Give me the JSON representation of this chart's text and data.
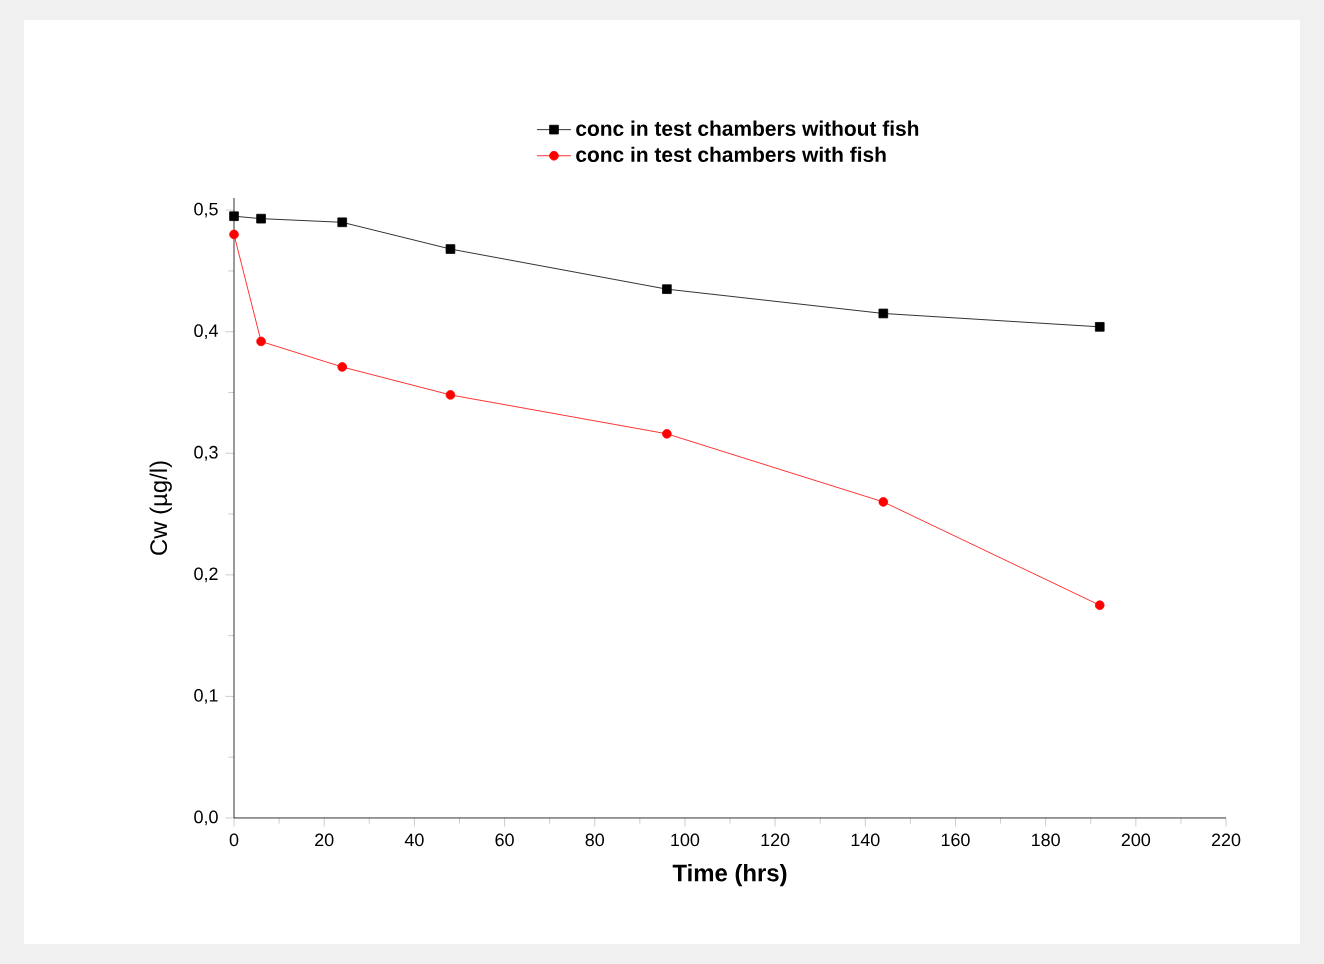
{
  "chart_data": {
    "type": "line",
    "xlabel": "Time (hrs)",
    "ylabel": "Cw (µg/l)",
    "legend": "top",
    "grid": false,
    "xlim": [
      0,
      220
    ],
    "xticks": [
      0,
      20,
      40,
      60,
      80,
      100,
      120,
      140,
      160,
      180,
      200,
      220
    ],
    "ylim": [
      0,
      0.51
    ],
    "yticks": [
      {
        "value": 0,
        "label": "0,0"
      },
      {
        "value": 0.1,
        "label": "0,1"
      },
      {
        "value": 0.2,
        "label": "0,2"
      },
      {
        "value": 0.3,
        "label": "0,3"
      },
      {
        "value": 0.4,
        "label": "0,4"
      },
      {
        "value": 0.5,
        "label": "0,5"
      }
    ],
    "x": [
      0,
      6,
      24,
      48,
      96,
      144,
      192
    ],
    "series": [
      {
        "name": "conc in test chambers without fish",
        "color": "#000000",
        "marker": "square",
        "values": [
          0.495,
          0.493,
          0.49,
          0.468,
          0.435,
          0.415,
          0.404
        ]
      },
      {
        "name": "conc in test chambers with fish",
        "color": "#ff0000",
        "marker": "circle",
        "values": [
          0.48,
          0.392,
          0.371,
          0.348,
          0.316,
          0.26,
          0.175
        ]
      }
    ]
  }
}
